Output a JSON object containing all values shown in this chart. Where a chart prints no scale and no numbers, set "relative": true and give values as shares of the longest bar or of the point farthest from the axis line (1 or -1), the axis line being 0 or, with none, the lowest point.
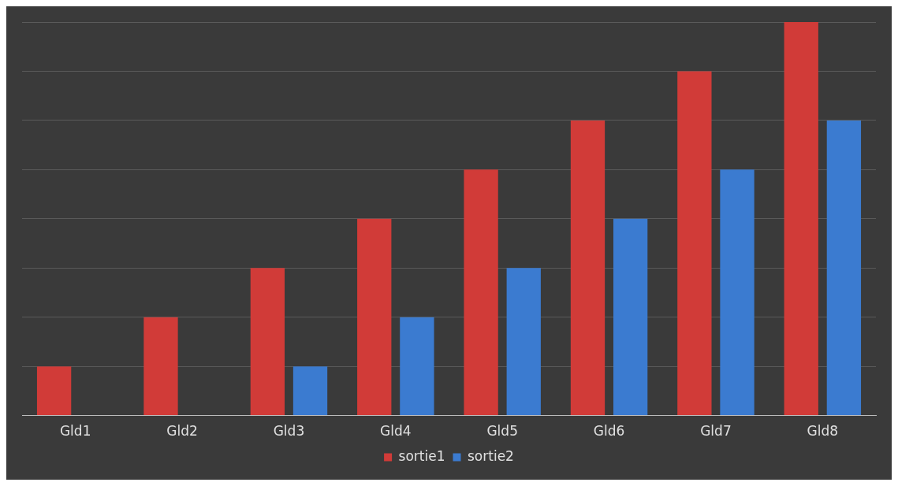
{
  "chart_data": {
    "type": "bar",
    "relative": true,
    "categories": [
      "Gld1",
      "Gld2",
      "Gld3",
      "Gld4",
      "Gld5",
      "Gld6",
      "Gld7",
      "Gld8"
    ],
    "series": [
      {
        "name": "sortie1",
        "color": "#d13b38",
        "values": [
          0.125,
          0.25,
          0.375,
          0.5,
          0.625,
          0.75,
          0.875,
          1
        ]
      },
      {
        "name": "sortie2",
        "color": "#3b7bd0",
        "values": [
          0,
          0,
          0.125,
          0.25,
          0.375,
          0.5,
          0.625,
          0.75
        ]
      }
    ],
    "grid": "y",
    "legend": "bottom"
  }
}
